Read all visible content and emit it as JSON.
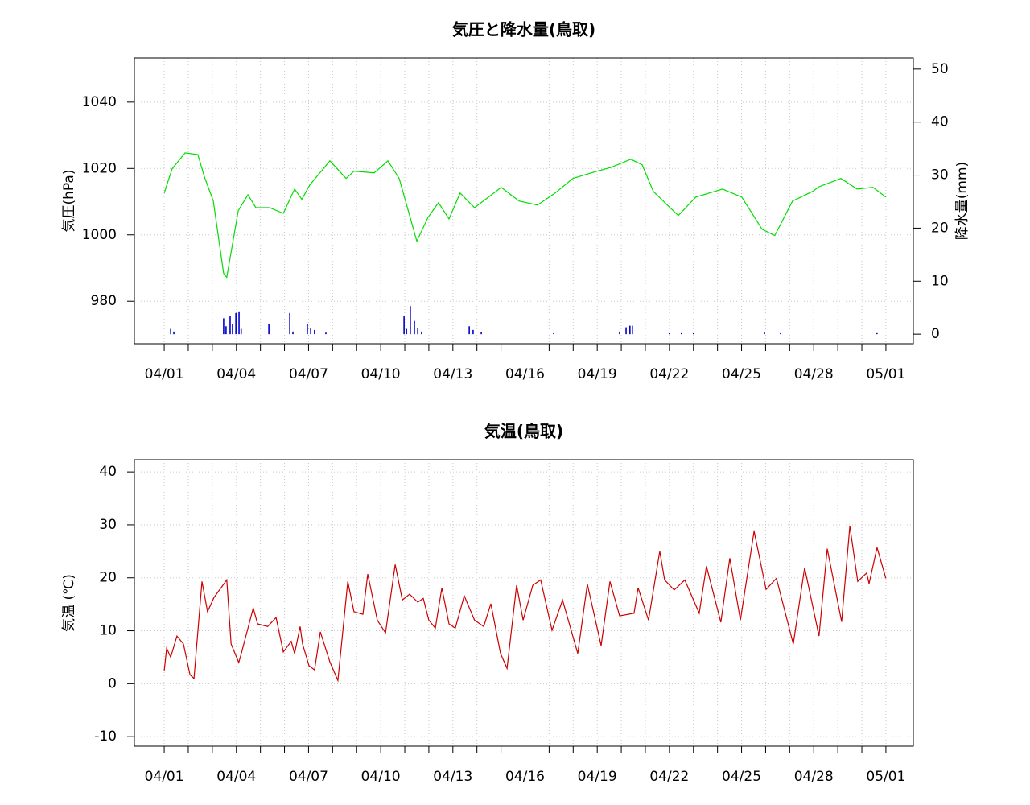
{
  "chart_data": [
    {
      "type": "line",
      "title": "気圧と降水量(鳥取)",
      "ylabel": "気圧(hPa)",
      "y2label": "降水量(mm)",
      "xlim": [
        -1.24,
        31.14
      ],
      "ylim": [
        967.2,
        1053.3
      ],
      "y2lim": [
        -1.8,
        52.1
      ],
      "xticks": [
        {
          "value": 0,
          "label": "04/01"
        },
        {
          "value": 3,
          "label": "04/04"
        },
        {
          "value": 6,
          "label": "04/07"
        },
        {
          "value": 9,
          "label": "04/10"
        },
        {
          "value": 12,
          "label": "04/13"
        },
        {
          "value": 15,
          "label": "04/16"
        },
        {
          "value": 18,
          "label": "04/19"
        },
        {
          "value": 21,
          "label": "04/22"
        },
        {
          "value": 24,
          "label": "04/25"
        },
        {
          "value": 27,
          "label": "04/28"
        },
        {
          "value": 30,
          "label": "05/01"
        }
      ],
      "xminorticks": [
        0,
        1,
        2,
        3,
        4,
        5,
        6,
        7,
        8,
        9,
        10,
        11,
        12,
        13,
        14,
        15,
        16,
        17,
        18,
        19,
        20,
        21,
        22,
        23,
        24,
        25,
        26,
        27,
        28,
        29,
        30
      ],
      "yticks": [
        980,
        1000,
        1020,
        1040
      ],
      "y2ticks": [
        0,
        10,
        20,
        30,
        40,
        50
      ],
      "grid": true,
      "series": [
        {
          "color": "#00dd00",
          "x": [
            0,
            0.33,
            0.87,
            1.4,
            1.67,
            2.04,
            2.47,
            2.6,
            3.08,
            3.48,
            3.81,
            4.38,
            4.95,
            5.42,
            5.72,
            6.05,
            6.89,
            7.56,
            7.89,
            8.73,
            9.3,
            9.77,
            10.5,
            10.97,
            11.4,
            11.84,
            12.3,
            12.9,
            14.01,
            14.75,
            15.52,
            16.25,
            16.99,
            17.76,
            18.6,
            19.4,
            19.87,
            20.33,
            21.37,
            22.1,
            23.21,
            24.01,
            24.85,
            25.38,
            26.12,
            26.96,
            27.22,
            28.13,
            28.8,
            29.46,
            30
          ],
          "values": [
            1012.6,
            1019.9,
            1024.7,
            1024.2,
            1017.5,
            1010.2,
            988.4,
            987.2,
            1007.3,
            1012.1,
            1008.2,
            1008.2,
            1006.5,
            1013.8,
            1010.7,
            1015.0,
            1022.3,
            1017.0,
            1019.2,
            1018.7,
            1022.3,
            1017.0,
            998.1,
            1005.3,
            1009.7,
            1004.8,
            1012.6,
            1008.2,
            1014.3,
            1010.2,
            1009.0,
            1012.6,
            1017.0,
            1018.7,
            1020.4,
            1022.8,
            1021.1,
            1013.1,
            1005.8,
            1011.4,
            1013.8,
            1011.4,
            1001.7,
            999.8,
            1010.2,
            1013.1,
            1014.5,
            1017.0,
            1013.8,
            1014.3,
            1011.4
          ]
        },
        {
          "type": "bar",
          "axis": "y2",
          "color": "#0000cc",
          "x": [
            0.27,
            0.4,
            2.47,
            2.57,
            2.74,
            2.84,
            2.98,
            3.11,
            3.2,
            4.35,
            5.22,
            5.35,
            5.95,
            6.09,
            6.25,
            6.72,
            9.97,
            10.07,
            10.23,
            10.4,
            10.54,
            10.7,
            12.68,
            12.84,
            13.18,
            16.19,
            18.93,
            19.2,
            19.36,
            19.46,
            21.0,
            21.5,
            22.0,
            24.95,
            25.62,
            29.63
          ],
          "values": [
            1.0,
            0.5,
            3,
            1.5,
            3.5,
            2,
            4,
            4.3,
            1,
            2,
            4,
            0.5,
            2,
            1.2,
            0.8,
            0.3,
            3.5,
            1,
            5.3,
            2.5,
            1.2,
            0.5,
            1.5,
            0.8,
            0.4,
            0.2,
            0.5,
            1.3,
            1.6,
            1.6,
            0.2,
            0.2,
            0.2,
            0.4,
            0.2,
            0.2
          ]
        }
      ]
    },
    {
      "type": "line",
      "title": "気温(鳥取)",
      "ylabel": "気温 (℃)",
      "xlim": [
        -1.24,
        31.14
      ],
      "ylim": [
        -11.8,
        42.3
      ],
      "xticks": [
        {
          "value": 0,
          "label": "04/01"
        },
        {
          "value": 3,
          "label": "04/04"
        },
        {
          "value": 6,
          "label": "04/07"
        },
        {
          "value": 9,
          "label": "04/10"
        },
        {
          "value": 12,
          "label": "04/13"
        },
        {
          "value": 15,
          "label": "04/16"
        },
        {
          "value": 18,
          "label": "04/19"
        },
        {
          "value": 21,
          "label": "04/22"
        },
        {
          "value": 24,
          "label": "04/25"
        },
        {
          "value": 27,
          "label": "04/28"
        },
        {
          "value": 30,
          "label": "05/01"
        }
      ],
      "xminorticks": [
        0,
        1,
        2,
        3,
        4,
        5,
        6,
        7,
        8,
        9,
        10,
        11,
        12,
        13,
        14,
        15,
        16,
        17,
        18,
        19,
        20,
        21,
        22,
        23,
        24,
        25,
        26,
        27,
        28,
        29,
        30
      ],
      "yticks": [
        -10,
        0,
        10,
        20,
        30,
        40
      ],
      "grid": true,
      "series": [
        {
          "color": "#cc0000",
          "x": [
            0,
            0.1,
            0.27,
            0.53,
            0.8,
            1.07,
            1.24,
            1.57,
            1.8,
            2.07,
            2.6,
            2.78,
            3.1,
            3.2,
            3.7,
            3.88,
            4.3,
            4.65,
            4.95,
            5.28,
            5.42,
            5.65,
            5.75,
            6.02,
            6.25,
            6.49,
            6.89,
            7.22,
            7.63,
            7.89,
            8.26,
            8.46,
            8.86,
            9.2,
            9.6,
            9.9,
            10.2,
            10.54,
            10.77,
            11,
            11.27,
            11.54,
            11.84,
            12.1,
            12.47,
            12.9,
            13.28,
            13.58,
            13.98,
            14.25,
            14.65,
            14.92,
            15.32,
            15.65,
            16.12,
            16.56,
            17.19,
            17.59,
            18.16,
            18.53,
            18.93,
            19.53,
            19.7,
            20.13,
            20.6,
            20.8,
            21.2,
            21.64,
            22.24,
            22.54,
            23.14,
            23.51,
            23.95,
            24.52,
            25.02,
            25.45,
            26.15,
            26.62,
            27.22,
            27.56,
            28.16,
            28.5,
            28.83,
            29.2,
            29.3,
            29.63,
            30
          ],
          "values": [
            2.5,
            6.7,
            5,
            9,
            7.5,
            1.7,
            1,
            19.3,
            13.6,
            16.3,
            19.6,
            7.5,
            4,
            5.6,
            14.3,
            11.3,
            10.8,
            12.5,
            6,
            8,
            5.7,
            10.8,
            7.5,
            3.4,
            2.6,
            9.8,
            4.1,
            0.6,
            19.3,
            13.6,
            13.1,
            20.7,
            12,
            9.6,
            22.5,
            15.8,
            16.9,
            15.4,
            16.1,
            12,
            10.5,
            18.1,
            11.3,
            10.5,
            16.6,
            12,
            10.8,
            15.1,
            5.7,
            2.9,
            18.6,
            12,
            18.6,
            19.6,
            10.1,
            15.8,
            5.7,
            18.8,
            7.2,
            19.3,
            12.8,
            13.3,
            18.1,
            12,
            25,
            19.6,
            17.7,
            19.6,
            13.3,
            22.2,
            11.6,
            23.7,
            12,
            28.8,
            17.8,
            19.9,
            7.5,
            21.9,
            9,
            25.5,
            11.7,
            29.8,
            19.3,
            20.9,
            18.9,
            25.7,
            19.9
          ]
        }
      ]
    }
  ]
}
